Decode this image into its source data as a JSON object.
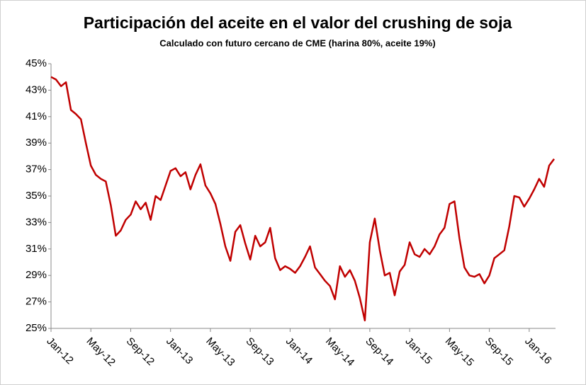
{
  "chart_data": {
    "type": "line",
    "title": "Participación del aceite en el valor del crushing de soja",
    "subtitle": "Calculado con futuro cercano de CME (harina 80%, aceite 19%)",
    "categories": [
      "Jan-12",
      null,
      null,
      null,
      null,
      null,
      null,
      null,
      "May-12",
      null,
      null,
      null,
      null,
      null,
      null,
      null,
      "Sep-12",
      null,
      null,
      null,
      null,
      null,
      null,
      null,
      "Jan-13",
      null,
      null,
      null,
      null,
      null,
      null,
      null,
      "May-13",
      null,
      null,
      null,
      null,
      null,
      null,
      null,
      "Sep-13",
      null,
      null,
      null,
      null,
      null,
      null,
      null,
      "Jan-14",
      null,
      null,
      null,
      null,
      null,
      null,
      null,
      "May-14",
      null,
      null,
      null,
      null,
      null,
      null,
      null,
      "Sep-14",
      null,
      null,
      null,
      null,
      null,
      null,
      null,
      "Jan-15",
      null,
      null,
      null,
      null,
      null,
      null,
      null,
      "May-15",
      null,
      null,
      null,
      null,
      null,
      null,
      null,
      "Sep-15",
      null,
      null,
      null,
      null,
      null,
      null,
      null,
      "Jan-16",
      null,
      null,
      null,
      null,
      null
    ],
    "series": [
      {
        "name": "Participación",
        "color": "#c00000",
        "values": [
          44,
          43.8,
          43.3,
          43.6,
          41.5,
          41.2,
          40.8,
          39,
          37.3,
          36.6,
          36.3,
          36.1,
          34.3,
          32,
          32.4,
          33.2,
          33.6,
          34.6,
          34,
          34.5,
          33.2,
          35,
          34.7,
          35.8,
          36.9,
          37.1,
          36.5,
          36.8,
          35.5,
          36.6,
          37.4,
          35.8,
          35.2,
          34.4,
          32.9,
          31.2,
          30.1,
          32.3,
          32.8,
          31.4,
          30.2,
          32,
          31.2,
          31.5,
          32.6,
          30.3,
          29.4,
          29.7,
          29.5,
          29.2,
          29.7,
          30.4,
          31.2,
          29.6,
          29.1,
          28.6,
          28.2,
          27.2,
          29.7,
          28.9,
          29.4,
          28.6,
          27.3,
          25.6,
          31.5,
          33.3,
          30.9,
          29,
          29.2,
          27.5,
          29.3,
          29.8,
          31.5,
          30.6,
          30.4,
          31,
          30.6,
          31.2,
          32.1,
          32.6,
          34.4,
          34.6,
          31.8,
          29.6,
          29,
          28.9,
          29.1,
          28.4,
          29,
          30.3,
          30.6,
          30.9,
          32.7,
          35,
          34.9,
          34.2,
          34.8,
          35.5,
          36.3,
          35.7,
          37.3,
          37.8
        ]
      }
    ],
    "ylim": [
      25,
      45
    ],
    "yticks": [
      {
        "value": 25,
        "label": "25%"
      },
      {
        "value": 27,
        "label": "27%"
      },
      {
        "value": 29,
        "label": "29%"
      },
      {
        "value": 31,
        "label": "31%"
      },
      {
        "value": 33,
        "label": "33%"
      },
      {
        "value": 35,
        "label": "35%"
      },
      {
        "value": 37,
        "label": "37%"
      },
      {
        "value": 39,
        "label": "39%"
      },
      {
        "value": 41,
        "label": "41%"
      },
      {
        "value": 43,
        "label": "43%"
      },
      {
        "value": 45,
        "label": "45%"
      }
    ],
    "grid": false
  }
}
